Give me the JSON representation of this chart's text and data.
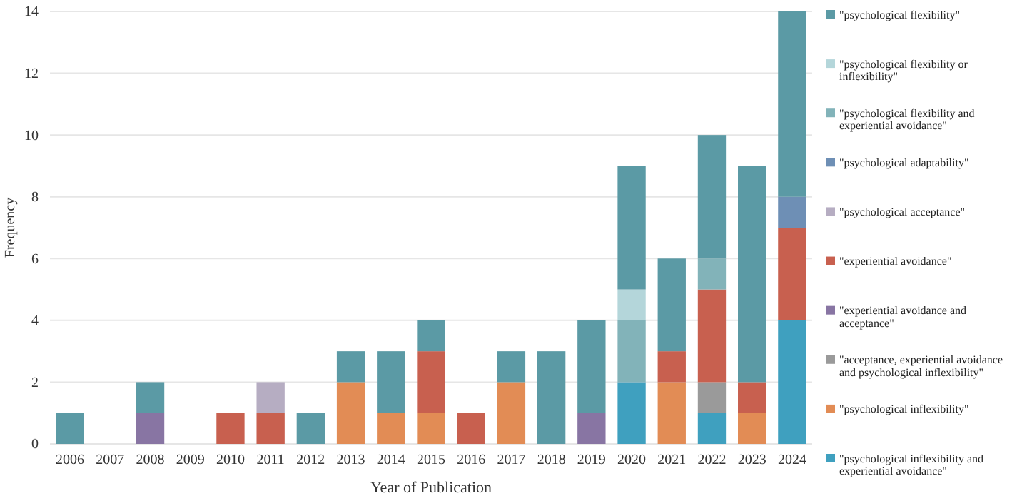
{
  "chart_data": {
    "type": "bar",
    "stacked": true,
    "xlabel": "Year of Publication",
    "ylabel": "Frequency",
    "categories": [
      "2006",
      "2007",
      "2008",
      "2009",
      "2010",
      "2011",
      "2012",
      "2013",
      "2014",
      "2015",
      "2016",
      "2017",
      "2018",
      "2019",
      "2020",
      "2021",
      "2022",
      "2023",
      "2024"
    ],
    "ylim": [
      0,
      14
    ],
    "yticks": [
      0,
      2,
      4,
      6,
      8,
      10,
      12,
      14
    ],
    "grid": "y",
    "legend": "right",
    "series": [
      {
        "name": "\"psychological inflexibility and experiential avoidance\"",
        "color": "#3fa0bf",
        "values": [
          0,
          0,
          0,
          0,
          0,
          0,
          0,
          0,
          0,
          0,
          0,
          0,
          0,
          0,
          2,
          0,
          1,
          0,
          4
        ]
      },
      {
        "name": "\"psychological inflexibility\"",
        "color": "#e28c55",
        "values": [
          0,
          0,
          0,
          0,
          0,
          0,
          0,
          2,
          1,
          1,
          0,
          2,
          0,
          0,
          0,
          2,
          0,
          1,
          0
        ]
      },
      {
        "name": "\"acceptance, experiential avoidance and psychological inflexibility\"",
        "color": "#9a9a9a",
        "values": [
          0,
          0,
          0,
          0,
          0,
          0,
          0,
          0,
          0,
          0,
          0,
          0,
          0,
          0,
          0,
          0,
          1,
          0,
          0
        ]
      },
      {
        "name": "\"experiential avoidance and acceptance\"",
        "color": "#8875a3",
        "values": [
          0,
          0,
          1,
          0,
          0,
          0,
          0,
          0,
          0,
          0,
          0,
          0,
          0,
          1,
          0,
          0,
          0,
          0,
          0
        ]
      },
      {
        "name": "\"experiential avoidance\"",
        "color": "#c8604f",
        "values": [
          0,
          0,
          0,
          0,
          1,
          1,
          0,
          0,
          0,
          2,
          1,
          0,
          0,
          0,
          0,
          1,
          3,
          1,
          3
        ]
      },
      {
        "name": "\"psychological acceptance\"",
        "color": "#b6adc2",
        "values": [
          0,
          0,
          0,
          0,
          0,
          1,
          0,
          0,
          0,
          0,
          0,
          0,
          0,
          0,
          0,
          0,
          0,
          0,
          0
        ]
      },
      {
        "name": "\"psychological adaptability\"",
        "color": "#6e8fb5",
        "values": [
          0,
          0,
          0,
          0,
          0,
          0,
          0,
          0,
          0,
          0,
          0,
          0,
          0,
          0,
          0,
          0,
          0,
          0,
          1
        ]
      },
      {
        "name": "\"psychological flexibility and experiential avoidance\"",
        "color": "#82b3b9",
        "values": [
          0,
          0,
          0,
          0,
          0,
          0,
          0,
          0,
          0,
          0,
          0,
          0,
          0,
          0,
          2,
          0,
          1,
          0,
          0
        ]
      },
      {
        "name": "\"psychological flexibility or inflexibility\"",
        "color": "#b4d6da",
        "values": [
          0,
          0,
          0,
          0,
          0,
          0,
          0,
          0,
          0,
          0,
          0,
          0,
          0,
          0,
          1,
          0,
          0,
          0,
          0
        ]
      },
      {
        "name": "\"psychological flexibility\"",
        "color": "#5b9aa5",
        "values": [
          1,
          0,
          1,
          0,
          0,
          0,
          1,
          1,
          2,
          1,
          0,
          1,
          3,
          3,
          4,
          3,
          4,
          7,
          6
        ]
      }
    ]
  }
}
